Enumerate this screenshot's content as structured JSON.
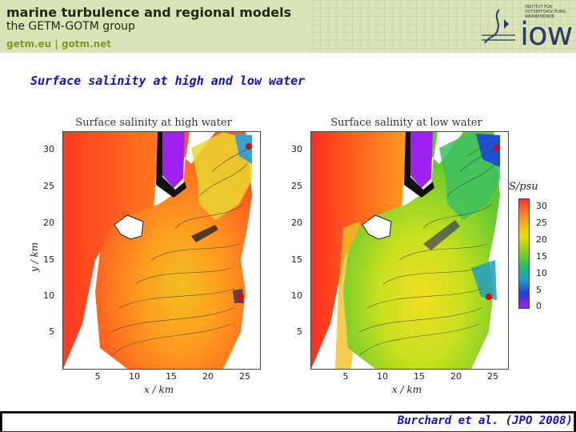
{
  "header": {
    "title": "marine turbulence and regional models",
    "subtitle": "the GETM-GOTM group",
    "links": "getm.eu | gotm.net",
    "logo_text": "iow",
    "logo_institute": "INSTITUT FÜR OSTSEEFORSCHUNG WARNEMÜNDE"
  },
  "slide_title": "Surface salinity at high and low water",
  "panels": [
    {
      "title": "Surface salinity at high water"
    },
    {
      "title": "Surface salinity at low water"
    }
  ],
  "axes": {
    "y_label": "y / km",
    "x_label": "x / km",
    "y_ticks": [
      "30",
      "25",
      "20",
      "15",
      "10",
      "5"
    ],
    "x_ticks": [
      "5",
      "10",
      "15",
      "20",
      "25"
    ]
  },
  "colorbar": {
    "label": "S/psu",
    "ticks": [
      "30",
      "25",
      "20",
      "15",
      "10",
      "5",
      "0"
    ],
    "colors": [
      "#ff3030",
      "#ff9a20",
      "#e8e000",
      "#80d020",
      "#20c060",
      "#20a0d0",
      "#2040e0",
      "#a020f0"
    ]
  },
  "citation": "Burchard et al. (JPO 2008)"
}
